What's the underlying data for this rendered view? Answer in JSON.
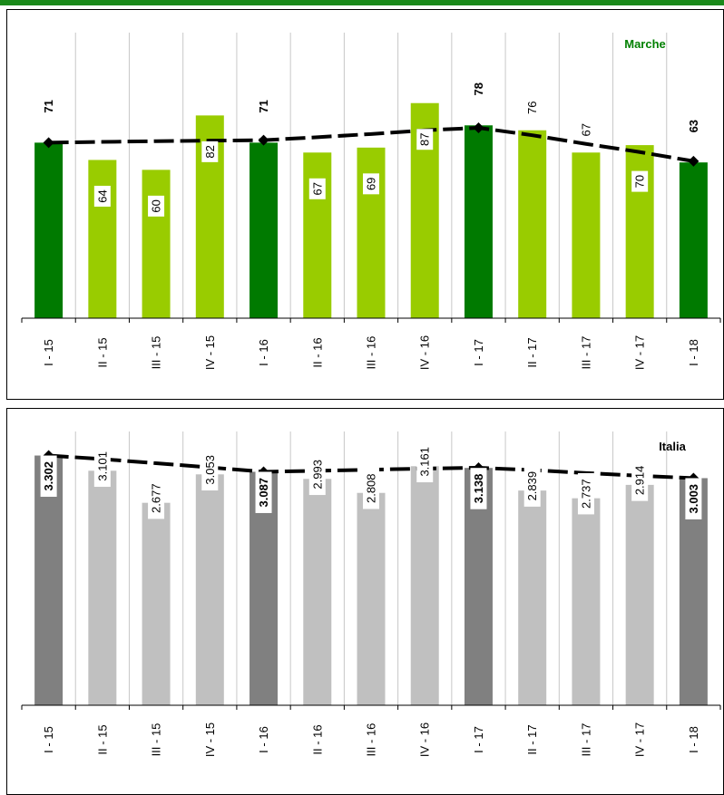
{
  "chart_data": [
    {
      "type": "bar",
      "region_label": "Marche",
      "categories": [
        "I - 15",
        "II - 15",
        "III - 15",
        "IV - 15",
        "I - 16",
        "II - 16",
        "III - 16",
        "IV - 16",
        "I - 17",
        "II - 17",
        "III - 17",
        "IV - 17",
        "I - 18"
      ],
      "series": [
        {
          "values": [
            71,
            64,
            60,
            82,
            71,
            67,
            69,
            87,
            78,
            76,
            67,
            70,
            63
          ]
        }
      ],
      "trend_line": [
        71,
        71.3,
        71.6,
        71.8,
        72,
        73.2,
        74.5,
        76,
        77,
        74,
        70.5,
        67.2,
        63.5
      ],
      "highlight_indices": [
        0,
        4,
        8,
        12
      ],
      "ylim": [
        0,
        110
      ],
      "colors": {
        "highlight": "#007a00",
        "normal": "#99cc00",
        "line": "#000000",
        "title": "#008000"
      },
      "grid": true
    },
    {
      "type": "bar",
      "region_label": "Italia",
      "categories": [
        "I - 15",
        "II - 15",
        "III - 15",
        "IV - 15",
        "I - 16",
        "II - 16",
        "III - 16",
        "IV - 16",
        "I - 17",
        "II - 17",
        "III - 17",
        "IV - 17",
        "I - 18"
      ],
      "series": [
        {
          "values": [
            3302,
            3101,
            2677,
            3053,
            3087,
            2993,
            2808,
            3161,
            3138,
            2839,
            2737,
            2914,
            3003
          ]
        }
      ],
      "value_labels": [
        "3.302",
        "3.101",
        "2.677",
        "3.053",
        "3.087",
        "2.993",
        "2.808",
        "3.161",
        "3.138",
        "2.839",
        "2.737",
        "2.914",
        "3.003"
      ],
      "trend_line": [
        3302,
        3255,
        3200,
        3145,
        3087,
        3100,
        3115,
        3130,
        3140,
        3110,
        3070,
        3035,
        3003
      ],
      "highlight_indices": [
        0,
        4,
        8,
        12
      ],
      "ylim": [
        0,
        3500
      ],
      "colors": {
        "highlight": "#808080",
        "normal": "#c0c0c0",
        "line": "#000000",
        "title": "#000000"
      },
      "grid": true
    }
  ]
}
